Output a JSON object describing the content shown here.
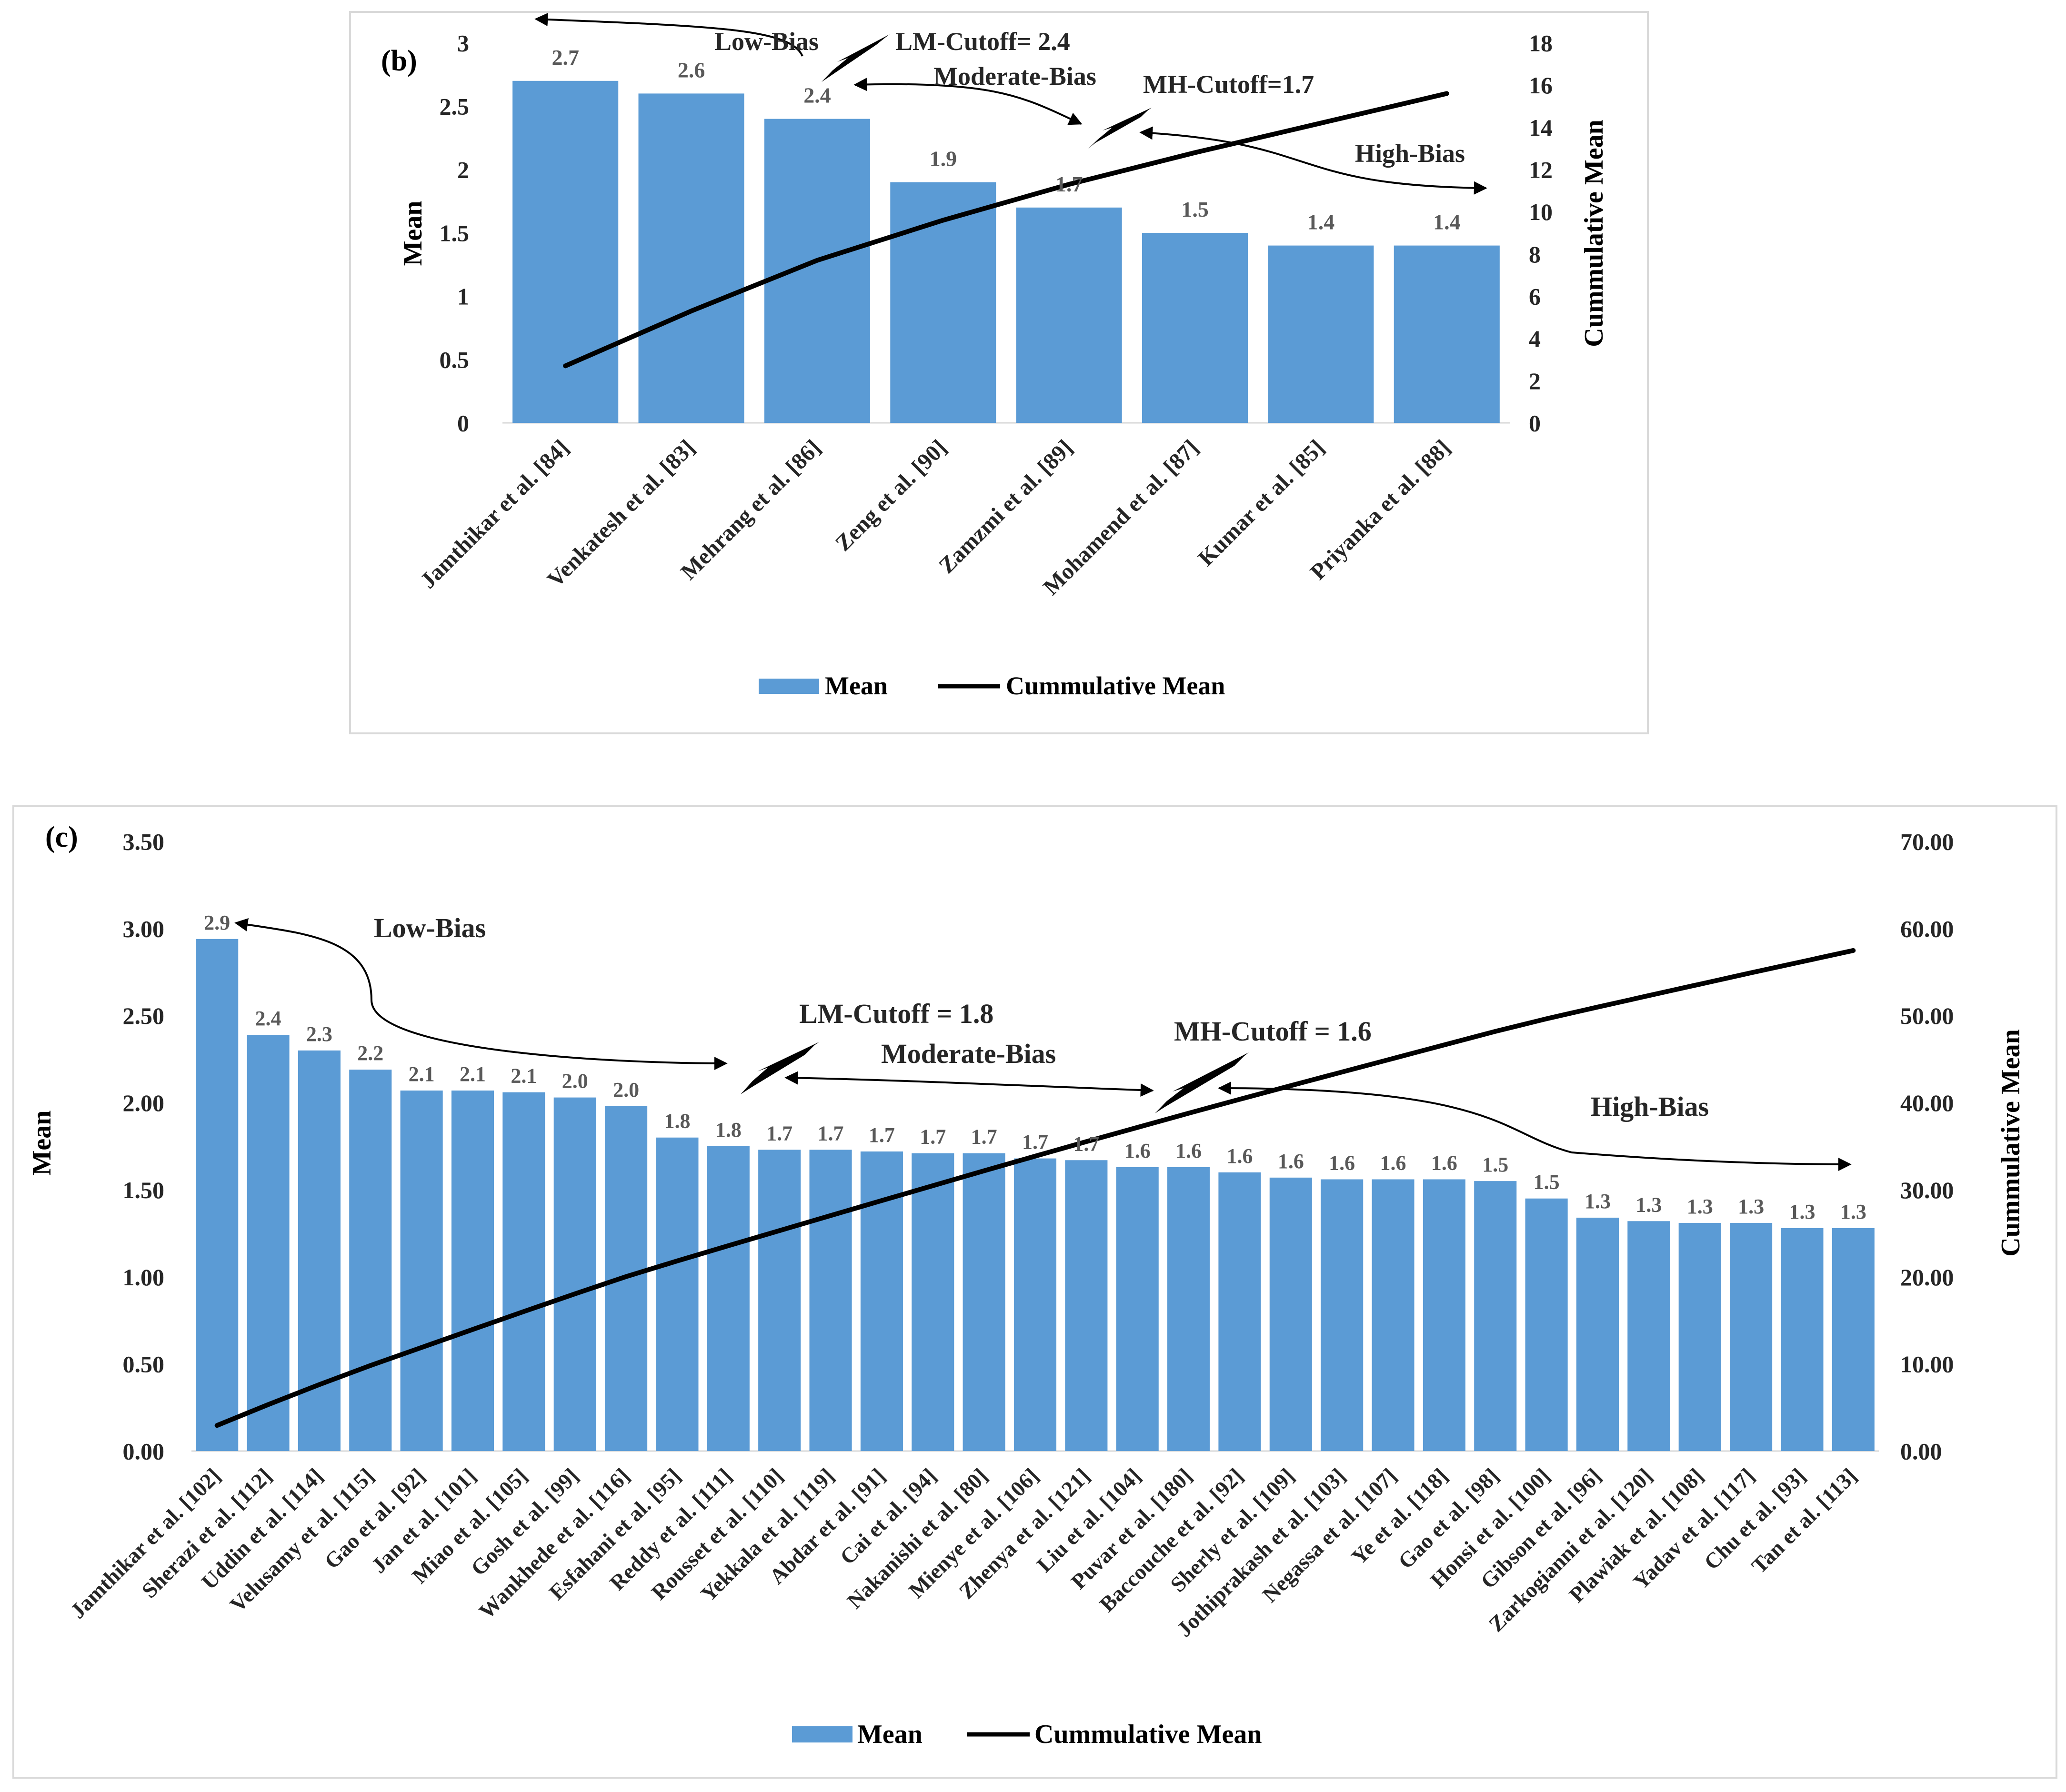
{
  "colors": {
    "bar": "#5b9bd5",
    "line": "#000000",
    "frame": "#d9d9d9",
    "label": "#595959"
  },
  "charts": [
    {
      "id": "b",
      "panel_label": "(b)",
      "legend": {
        "bar_label": "Mean",
        "line_label": "Cummulative Mean"
      },
      "y_left": {
        "title": "Mean",
        "ticks": [
          "0",
          "0.5",
          "1",
          "1.5",
          "2",
          "2.5",
          "3"
        ]
      },
      "y_right": {
        "title": "Cummulative Mean",
        "ticks": [
          "0",
          "2",
          "4",
          "6",
          "8",
          "10",
          "12",
          "14",
          "16",
          "18"
        ]
      },
      "data_labels": [
        "2.7",
        "2.6",
        "2.4",
        "1.9",
        "1.7",
        "1.5",
        "1.4",
        "1.4"
      ],
      "annotations": {
        "low": "Low-Bias",
        "lm": "LM-Cutoff= 2.4",
        "moderate": "Moderate-Bias",
        "mh": "MH-Cutoff=1.7",
        "high": "High-Bias"
      }
    },
    {
      "id": "c",
      "panel_label": "(c)",
      "legend": {
        "bar_label": "Mean",
        "line_label": "Cummulative Mean"
      },
      "y_left": {
        "title": "Mean",
        "ticks": [
          "0.00",
          "0.50",
          "1.00",
          "1.50",
          "2.00",
          "2.50",
          "3.00",
          "3.50"
        ]
      },
      "y_right": {
        "title": "Cummulative Mean",
        "ticks": [
          "0.00",
          "10.00",
          "20.00",
          "30.00",
          "40.00",
          "50.00",
          "60.00",
          "70.00"
        ]
      },
      "data_labels": [
        "2.9",
        "2.4",
        "2.3",
        "2.2",
        "2.1",
        "2.1",
        "2.1",
        "2.0",
        "2.0",
        "1.8",
        "1.8",
        "1.7",
        "1.7",
        "1.7",
        "1.7",
        "1.7",
        "1.7",
        "1.7",
        "1.6",
        "1.6",
        "1.6",
        "1.6",
        "1.6",
        "1.6",
        "1.6",
        "1.5",
        "1.5",
        "1.3",
        "1.3",
        "1.3",
        "1.3",
        "1.3",
        "1.3"
      ],
      "annotations": {
        "low": "Low-Bias",
        "lm": "LM-Cutoff = 1.8",
        "moderate": "Moderate-Bias",
        "mh": "MH-Cutoff = 1.6",
        "high": "High-Bias"
      }
    }
  ],
  "chart_data": [
    {
      "type": "bar",
      "title": "(b)",
      "categories": [
        "Jamthikar et al. [84]",
        "Venkatesh et al. [83]",
        "Mehrang et al. [86]",
        "Zeng et al. [90]",
        "Zamzmi et al. [89]",
        "Mohamend et al. [87]",
        "Kumar et al. [85]",
        "Priyanka et al. [88]"
      ],
      "series": [
        {
          "name": "Mean",
          "type": "bar",
          "axis": "left",
          "values": [
            2.7,
            2.6,
            2.4,
            1.9,
            1.7,
            1.5,
            1.4,
            1.4
          ]
        },
        {
          "name": "Cummulative Mean",
          "type": "line",
          "axis": "right",
          "values": [
            2.7,
            5.3,
            7.7,
            9.6,
            11.3,
            12.8,
            14.2,
            15.6
          ]
        }
      ],
      "xlabel": "",
      "ylabel": "Mean",
      "y2label": "Cummulative Mean",
      "ylim": [
        0,
        3
      ],
      "y2lim": [
        0,
        18
      ],
      "grid": false,
      "legend": "bottom"
    },
    {
      "type": "bar",
      "title": "(c)",
      "categories": [
        "Jamthikar et al. [102]",
        "Sherazi et al. [112]",
        "Uddin et al. [114]",
        "Velusamy et al. [115]",
        "Gao et al. [92]",
        "Jan et al. [101]",
        "Miao et al. [105]",
        "Gosh et al. [99]",
        "Wankhede et al. [116]",
        "Esfahani et al. [95]",
        "Reddy et al. [111]",
        "Rousset et al. [110]",
        "Yekkala et al. [119]",
        "Abdar et al. [91]",
        "Cai et al. [94]",
        "Nakanishi et al. [80]",
        "Mienye et al. [106]",
        "Zhenya et al. [121]",
        "Liu et al. [104]",
        "Puvar et al. [180]",
        "Baccouche et al. [92]",
        "Sherly et al. [109]",
        "Jothiprakash et al. [103]",
        "Negassa et al. [107]",
        "Ye et al. [118]",
        "Gao et al. [98]",
        "Honsi et al. [100]",
        "Gibson et al. [96]",
        "Zarkogianni et al. [120]",
        "Plawiak et al. [108]",
        "Yadav et al. [117]",
        "Chu et al. [93]",
        "Tan et al. [113]"
      ],
      "series": [
        {
          "name": "Mean",
          "type": "bar",
          "axis": "left",
          "values": [
            2.94,
            2.39,
            2.3,
            2.19,
            2.07,
            2.07,
            2.06,
            2.03,
            1.98,
            1.8,
            1.75,
            1.73,
            1.73,
            1.72,
            1.71,
            1.71,
            1.68,
            1.67,
            1.63,
            1.63,
            1.6,
            1.57,
            1.56,
            1.56,
            1.56,
            1.55,
            1.45,
            1.34,
            1.32,
            1.31,
            1.31,
            1.28,
            1.28
          ]
        },
        {
          "name": "Cummulative Mean",
          "type": "line",
          "axis": "right",
          "values": [
            2.94,
            5.33,
            7.63,
            9.82,
            11.89,
            13.96,
            16.02,
            18.05,
            20.03,
            21.83,
            23.58,
            25.31,
            27.04,
            28.76,
            30.47,
            32.18,
            33.86,
            35.53,
            37.16,
            38.79,
            40.39,
            41.96,
            43.52,
            45.08,
            46.64,
            48.19,
            49.64,
            50.98,
            52.3,
            53.61,
            54.92,
            56.2,
            57.48
          ]
        }
      ],
      "xlabel": "",
      "ylabel": "Mean",
      "y2label": "Cummulative Mean",
      "ylim": [
        0,
        3.5
      ],
      "y2lim": [
        0,
        70
      ],
      "grid": false,
      "legend": "bottom"
    }
  ]
}
